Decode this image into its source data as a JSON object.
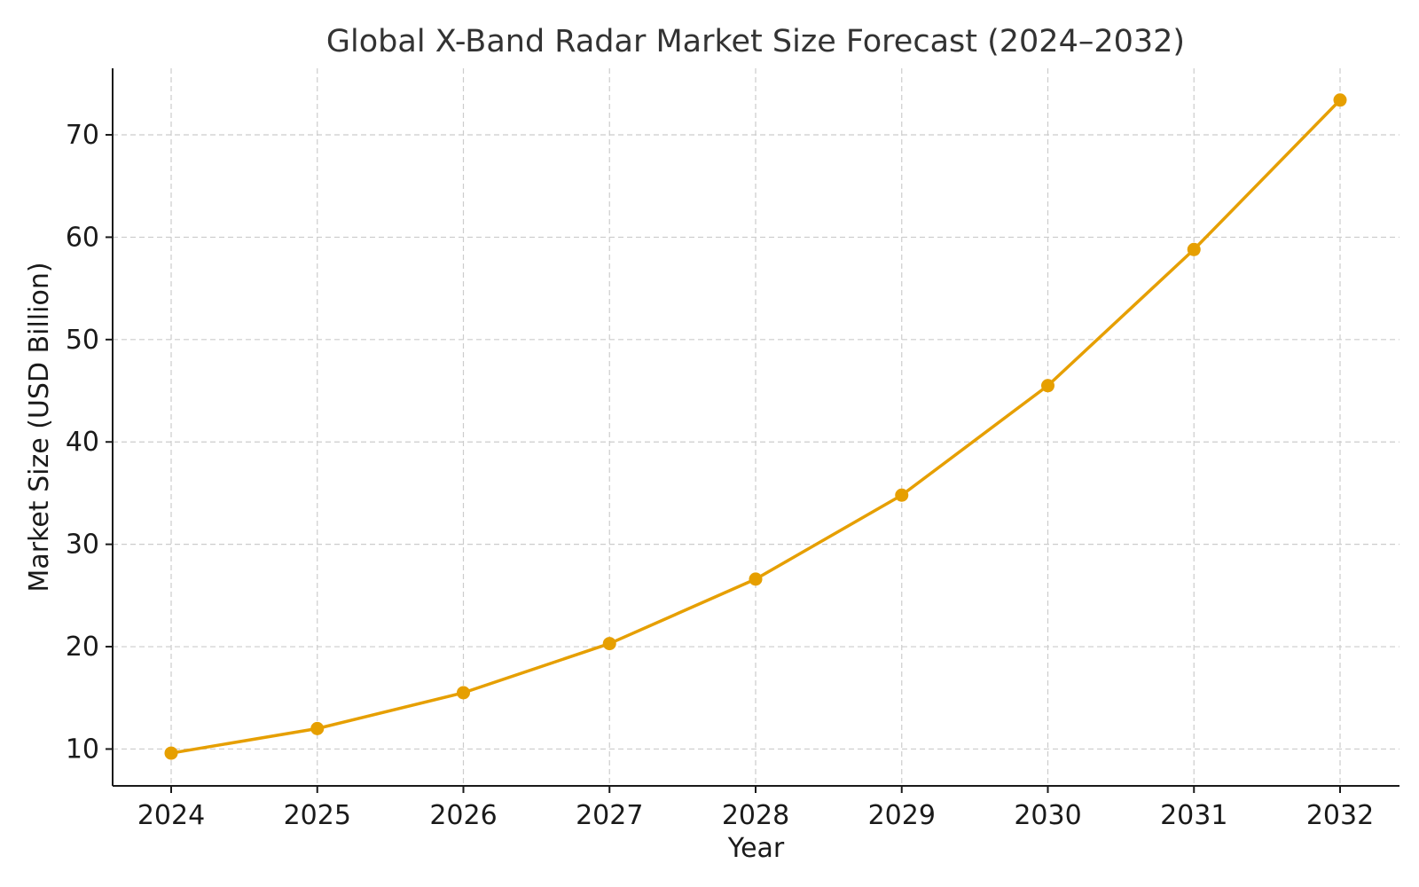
{
  "chart_data": {
    "type": "line",
    "title": "Global X-Band Radar Market Size Forecast (2024–2032)",
    "xlabel": "Year",
    "ylabel": "Market Size (USD Billion)",
    "categories": [
      "2024",
      "2025",
      "2026",
      "2027",
      "2028",
      "2029",
      "2030",
      "2031",
      "2032"
    ],
    "series": [
      {
        "values": [
          9.6,
          12.0,
          15.5,
          20.3,
          26.6,
          34.8,
          45.5,
          58.8,
          73.4
        ],
        "color": "#E69F00",
        "marker": "circle"
      }
    ],
    "yticks": [
      10,
      20,
      30,
      40,
      50,
      60,
      70
    ],
    "ylim": [
      6.4,
      76.5
    ],
    "grid": true,
    "legend": "none"
  }
}
